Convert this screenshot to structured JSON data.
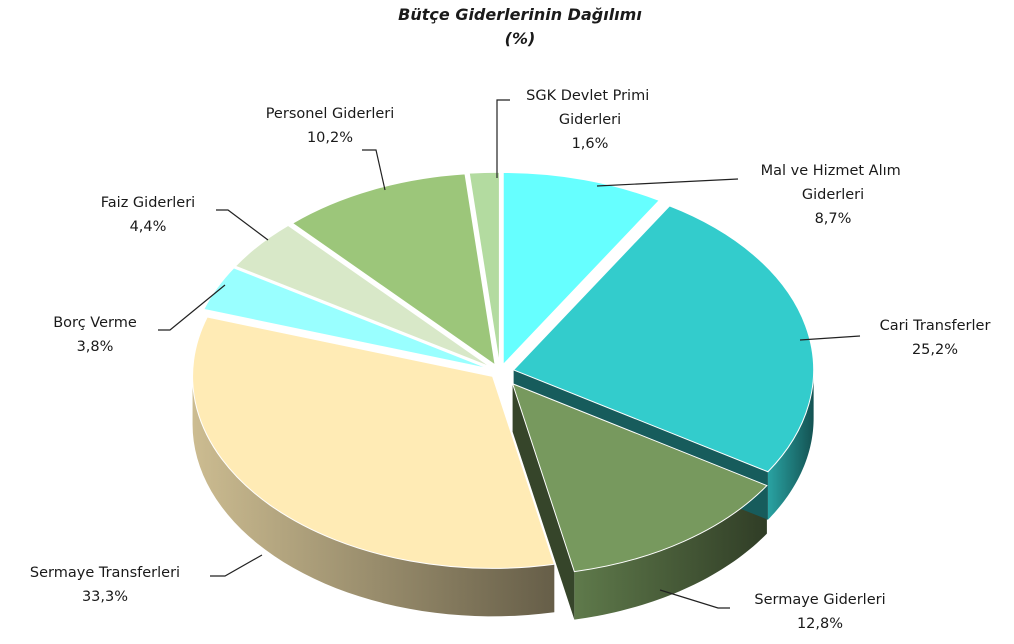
{
  "chart_data": {
    "type": "pie3d",
    "title": "Bütçe Giderlerinin Dağılımı",
    "subtitle": "(%)",
    "categories": [
      "Mal ve Hizmet Alım Giderleri",
      "Cari Transferler",
      "Sermaye Giderleri",
      "Sermaye Transferleri",
      "Borç Verme",
      "Faiz Giderleri",
      "Personel Giderleri",
      "SGK Devlet Primi Giderleri"
    ],
    "values": [
      8.7,
      25.2,
      12.8,
      33.3,
      3.8,
      4.4,
      10.2,
      1.6
    ],
    "value_labels": [
      "8,7%",
      "25,2%",
      "12,8%",
      "33,3%",
      "3,8%",
      "4,4%",
      "10,2%",
      "1,6%"
    ],
    "colors": [
      "#66ffff",
      "#33cccc",
      "#77995e",
      "#ffebb5",
      "#99ffff",
      "#d8e8c8",
      "#9cc67a",
      "#b3dba0"
    ]
  }
}
